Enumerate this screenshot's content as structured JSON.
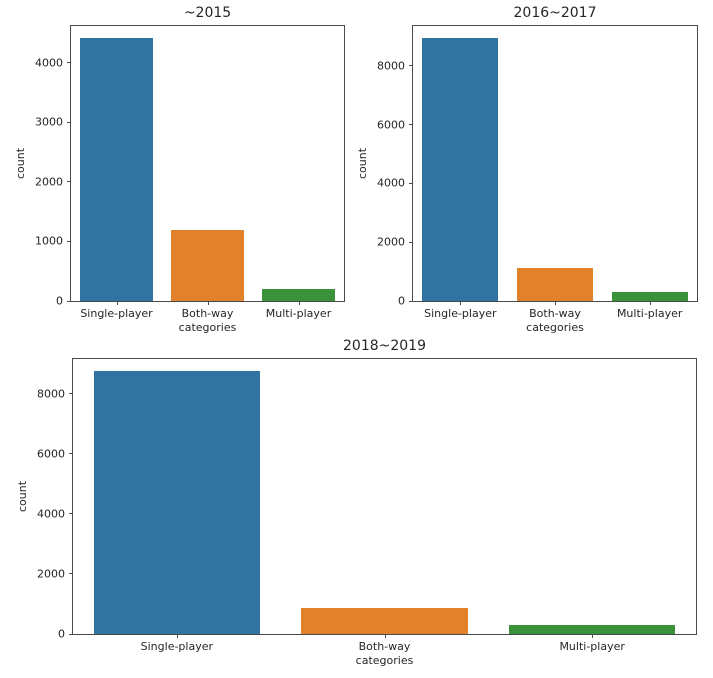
{
  "figure": {
    "background": "#ffffff",
    "text_color": "#262626",
    "frame_color": "#4a4a4a"
  },
  "palette": {
    "single_player": "#3274a1",
    "both_way": "#e1812c",
    "multi_player": "#3a923a"
  },
  "chart_data": [
    {
      "type": "bar",
      "title": "~2015",
      "categories": [
        "Single-player",
        "Both-way",
        "Multi-player"
      ],
      "values": [
        4420,
        1200,
        210
      ],
      "bar_colors": [
        "#3274a1",
        "#e1812c",
        "#3a923a"
      ],
      "xlabel": "categories",
      "ylabel": "count",
      "ylim": [
        0,
        4620
      ],
      "yticks": [
        0,
        1000,
        2000,
        3000,
        4000
      ],
      "grid": false,
      "legend": "none"
    },
    {
      "type": "bar",
      "title": "2016~2017",
      "categories": [
        "Single-player",
        "Both-way",
        "Multi-player"
      ],
      "values": [
        8950,
        1110,
        300
      ],
      "bar_colors": [
        "#3274a1",
        "#e1812c",
        "#3a923a"
      ],
      "xlabel": "categories",
      "ylabel": "count",
      "ylim": [
        0,
        9350
      ],
      "yticks": [
        0,
        2000,
        4000,
        6000,
        8000
      ],
      "grid": false,
      "legend": "none"
    },
    {
      "type": "bar",
      "title": "2018~2019",
      "categories": [
        "Single-player",
        "Both-way",
        "Multi-player"
      ],
      "values": [
        8760,
        850,
        310
      ],
      "bar_colors": [
        "#3274a1",
        "#e1812c",
        "#3a923a"
      ],
      "xlabel": "categories",
      "ylabel": "count",
      "ylim": [
        0,
        9160
      ],
      "yticks": [
        0,
        2000,
        4000,
        6000,
        8000
      ],
      "grid": false,
      "legend": "none"
    }
  ]
}
